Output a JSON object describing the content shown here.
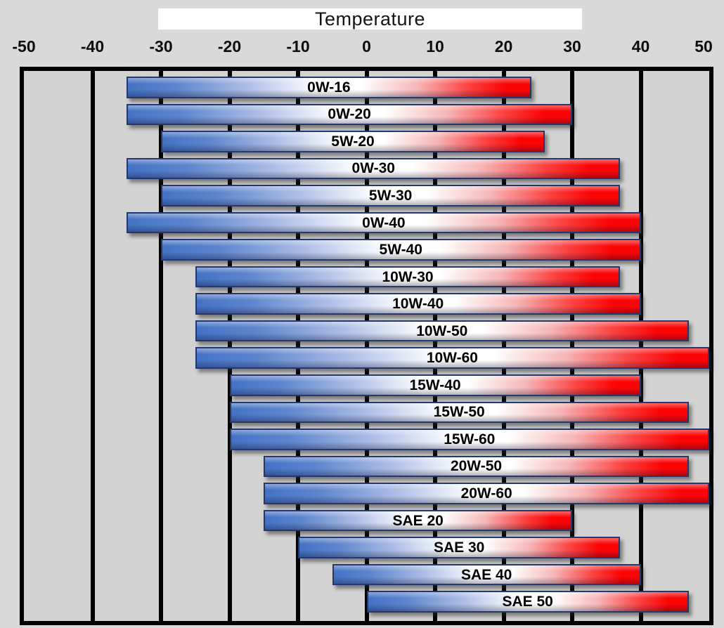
{
  "chart_data": {
    "type": "bar",
    "orientation": "horizontal_range",
    "title": "Temperature",
    "xlabel": "",
    "ylabel": "",
    "xlim": [
      -50,
      50
    ],
    "grid": true,
    "legend": "none",
    "tick_values": [
      -50,
      -40,
      -30,
      -20,
      -10,
      0,
      10,
      20,
      30,
      40,
      50
    ],
    "tick_labels": [
      "-50",
      "-40",
      "-30",
      "-20",
      "-10",
      "0",
      "10",
      "20",
      "30",
      "40",
      "50"
    ],
    "gridline_values": [
      -40,
      -30,
      -20,
      -10,
      0,
      10,
      20,
      30,
      40
    ],
    "series": [
      {
        "name": "0W-16",
        "min": -35,
        "max": 24
      },
      {
        "name": "0W-20",
        "min": -35,
        "max": 30
      },
      {
        "name": "5W-20",
        "min": -30,
        "max": 26
      },
      {
        "name": "0W-30",
        "min": -35,
        "max": 37
      },
      {
        "name": "5W-30",
        "min": -30,
        "max": 37
      },
      {
        "name": "0W-40",
        "min": -35,
        "max": 40
      },
      {
        "name": "5W-40",
        "min": -30,
        "max": 40
      },
      {
        "name": "10W-30",
        "min": -25,
        "max": 37
      },
      {
        "name": "10W-40",
        "min": -25,
        "max": 40
      },
      {
        "name": "10W-50",
        "min": -25,
        "max": 47
      },
      {
        "name": "10W-60",
        "min": -25,
        "max": 50
      },
      {
        "name": "15W-40",
        "min": -20,
        "max": 40
      },
      {
        "name": "15W-50",
        "min": -20,
        "max": 47
      },
      {
        "name": "15W-60",
        "min": -20,
        "max": 50
      },
      {
        "name": "20W-50",
        "min": -15,
        "max": 47
      },
      {
        "name": "20W-60",
        "min": -15,
        "max": 50
      },
      {
        "name": "SAE 20",
        "min": -15,
        "max": 30
      },
      {
        "name": "SAE 30",
        "min": -10,
        "max": 37
      },
      {
        "name": "SAE 40",
        "min": -5,
        "max": 40
      },
      {
        "name": "SAE 50",
        "min": 0,
        "max": 47
      }
    ],
    "colors": {
      "cold_end": "#4472c4",
      "midpoint": "#ffffff",
      "hot_end": "#fa0505",
      "bar_border": "#24386b",
      "gridline": "#000000",
      "page_background": "#d9d9d9",
      "plot_background": "#d3d3d3",
      "title_box_background": "#ffffff"
    }
  }
}
